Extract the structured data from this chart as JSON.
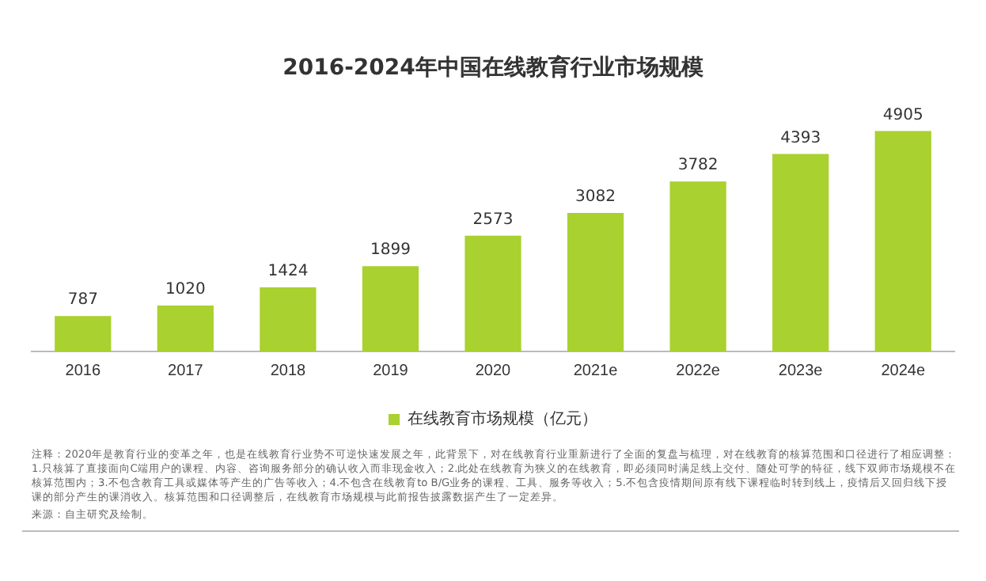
{
  "chart_data": {
    "type": "bar",
    "title": "2016-2024年中国在线教育行业市场规模",
    "categories": [
      "2016",
      "2017",
      "2018",
      "2019",
      "2020",
      "2021e",
      "2022e",
      "2023e",
      "2024e"
    ],
    "series": [
      {
        "name": "在线教育市场规模（亿元）",
        "color": "#a9d12f",
        "values": [
          787,
          1020,
          1424,
          1899,
          2573,
          3082,
          3782,
          4393,
          4905
        ]
      }
    ],
    "data_labels": true,
    "legend": "bottom",
    "grid": false,
    "tick_labels": "x",
    "annotations": [
      "注释：2020年是教育行业的变革之年，也是在线教育行业势不可逆快速发展之年，此背景下，对在线教育行业重新进行了全面的复盘与梳理，对在线教育的核算范围和口径进行了相应调整：1.只核算了直接面向C端用户的课程、内容、咨询服务部分的确认收入而非现金收入；2.此处在线教育为狭义的在线教育，即必须同时满足线上交付、随处可学的特征，线下双师市场规模不在核算范围内；3.不包含教育工具或媒体等产生的广告等收入；4.不包含在线教育to B/G业务的课程、工具、服务等收入；5.不包含疫情期间原有线下课程临时转到线上，疫情后又回归线下授课的部分产生的课消收入。核算范围和口径调整后，在线教育市场规模与此前报告披露数据产生了一定差异。",
      "来源：自主研究及绘制。"
    ]
  }
}
